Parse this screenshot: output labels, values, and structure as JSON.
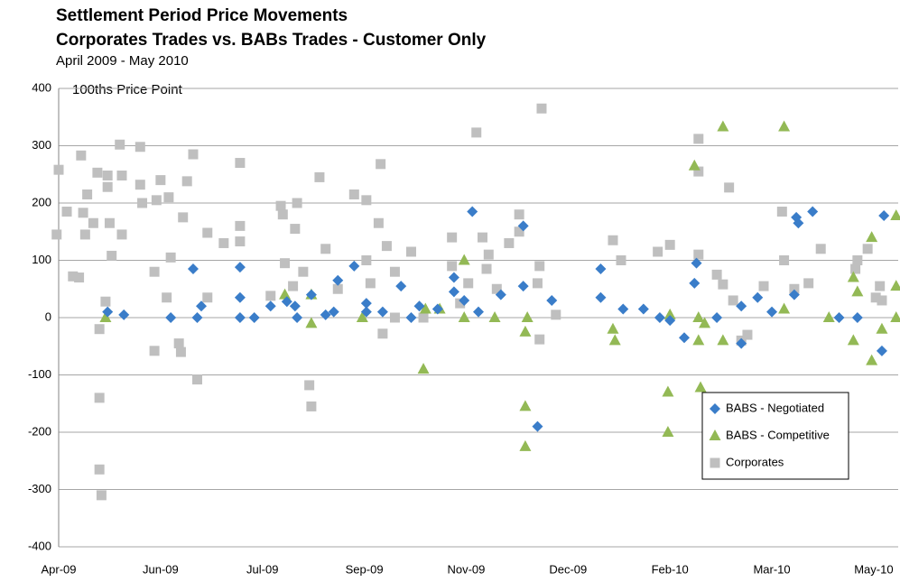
{
  "chart_data": {
    "type": "scatter",
    "title": "Settlement Period Price Movements",
    "subtitle": "Corporates Trades vs. BABs Trades - Customer Only",
    "date_range": "April 2009 - May 2010",
    "y_label": "100ths Price Point",
    "xlim": [
      39918,
      40330
    ],
    "xticks": [
      {
        "value": 39918,
        "label": "Apr-09"
      },
      {
        "value": 39968,
        "label": "Jun-09"
      },
      {
        "value": 40018,
        "label": "Jul-09"
      },
      {
        "value": 40068,
        "label": "Sep-09"
      },
      {
        "value": 40118,
        "label": "Nov-09"
      },
      {
        "value": 40168,
        "label": "Dec-09"
      },
      {
        "value": 40218,
        "label": "Feb-10"
      },
      {
        "value": 40268,
        "label": "Mar-10"
      },
      {
        "value": 40318,
        "label": "May-10"
      }
    ],
    "ylim": [
      -400,
      400
    ],
    "yticks": [
      -400,
      -300,
      -200,
      -100,
      0,
      100,
      200,
      300,
      400
    ],
    "grid": true,
    "legend": "lower right",
    "series": [
      {
        "name": "BABS - Negotiated",
        "color": "#3a7dc9",
        "marker": "diamond",
        "x": [
          39942,
          39950,
          39973,
          39984,
          39986,
          39988,
          40007,
          40007,
          40007,
          40014,
          40022,
          40030,
          40034,
          40035,
          40042,
          40049,
          40053,
          40055,
          40063,
          40069,
          40069,
          40077,
          40086,
          40091,
          40095,
          40104,
          40112,
          40112,
          40117,
          40121,
          40124,
          40135,
          40146,
          40146,
          40153,
          40160,
          40184,
          40184,
          40195,
          40205,
          40213,
          40218,
          40225,
          40230,
          40231,
          40241,
          40253,
          40253,
          40261,
          40268,
          40279,
          40280,
          40281,
          40288,
          40301,
          40310,
          40322,
          40323
        ],
        "values": [
          10,
          5,
          0,
          85,
          0,
          20,
          88,
          35,
          0,
          0,
          20,
          28,
          20,
          0,
          40,
          5,
          10,
          65,
          90,
          25,
          10,
          10,
          55,
          0,
          20,
          15,
          70,
          45,
          30,
          185,
          10,
          40,
          55,
          160,
          -190,
          30,
          85,
          35,
          15,
          15,
          0,
          -5,
          -35,
          60,
          95,
          0,
          -45,
          20,
          35,
          10,
          40,
          175,
          165,
          185,
          0,
          0,
          -58,
          178
        ]
      },
      {
        "name": "BABS - Competitive",
        "color": "#93b955",
        "marker": "triangle",
        "x": [
          39941,
          40029,
          40042,
          40042,
          40067,
          40097,
          40098,
          40105,
          40117,
          40117,
          40132,
          40147,
          40147,
          40147,
          40148,
          40190,
          40191,
          40217,
          40217,
          40218,
          40230,
          40232,
          40232,
          40233,
          40235,
          40244,
          40244,
          40274,
          40274,
          40296,
          40308,
          40308,
          40310,
          40317,
          40317,
          40322,
          40329,
          40329,
          40329
        ],
        "values": [
          0,
          40,
          40,
          -10,
          0,
          -90,
          15,
          15,
          100,
          0,
          0,
          -225,
          -155,
          -25,
          0,
          -20,
          -40,
          -130,
          -200,
          5,
          265,
          0,
          -40,
          -122,
          -10,
          -40,
          333,
          333,
          15,
          0,
          -40,
          70,
          45,
          140,
          -75,
          -20,
          178,
          55,
          0
        ]
      },
      {
        "name": "Corporates",
        "color": "#bfbfbf",
        "marker": "square",
        "x": [
          39917,
          39918,
          39922,
          39925,
          39928,
          39929,
          39930,
          39931,
          39932,
          39935,
          39937,
          39938,
          39938,
          39938,
          39939,
          39941,
          39942,
          39942,
          39943,
          39944,
          39948,
          39949,
          39949,
          39958,
          39958,
          39959,
          39965,
          39965,
          39966,
          39968,
          39971,
          39972,
          39973,
          39977,
          39978,
          39979,
          39981,
          39984,
          39986,
          39991,
          39991,
          39999,
          40007,
          40007,
          40007,
          40022,
          40027,
          40028,
          40029,
          40033,
          40034,
          40035,
          40038,
          40041,
          40042,
          40046,
          40049,
          40055,
          40063,
          40069,
          40069,
          40071,
          40075,
          40076,
          40077,
          40079,
          40083,
          40083,
          40091,
          40097,
          40111,
          40111,
          40115,
          40119,
          40123,
          40126,
          40128,
          40129,
          40133,
          40139,
          40144,
          40144,
          40153,
          40155,
          40154,
          40154,
          40162,
          40190,
          40194,
          40212,
          40218,
          40232,
          40232,
          40232,
          40241,
          40244,
          40247,
          40249,
          40253,
          40256,
          40264,
          40273,
          40274,
          40279,
          40286,
          40292,
          40309,
          40310,
          40315,
          40319,
          40321,
          40322
        ],
        "values": [
          145,
          258,
          185,
          72,
          70,
          283,
          183,
          145,
          215,
          165,
          253,
          -20,
          -140,
          -265,
          -310,
          28,
          248,
          228,
          165,
          108,
          302,
          145,
          248,
          298,
          232,
          200,
          -58,
          80,
          205,
          240,
          35,
          210,
          105,
          -45,
          -60,
          175,
          238,
          285,
          -108,
          148,
          35,
          130,
          270,
          133,
          160,
          38,
          195,
          180,
          95,
          55,
          155,
          200,
          80,
          -118,
          -155,
          245,
          120,
          50,
          215,
          205,
          100,
          60,
          165,
          268,
          -28,
          125,
          80,
          0,
          115,
          0,
          140,
          90,
          25,
          60,
          323,
          140,
          85,
          110,
          50,
          130,
          180,
          150,
          60,
          365,
          -38,
          90,
          5,
          135,
          100,
          115,
          127,
          255,
          312,
          110,
          75,
          58,
          227,
          30,
          -40,
          -30,
          55,
          185,
          100,
          50,
          60,
          120,
          85,
          100,
          120,
          35,
          55,
          30
        ]
      }
    ]
  }
}
